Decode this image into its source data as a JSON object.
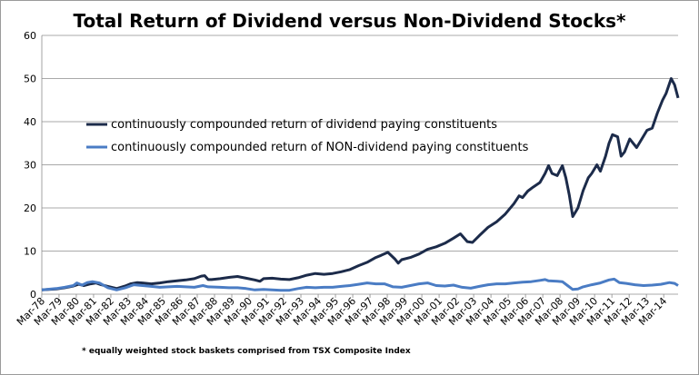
{
  "chart_data": {
    "type": "line",
    "title": "Total Return of Dividend versus Non-Dividend Stocks*",
    "footnote": "* equally weighted stock baskets comprised from TSX Composite Index",
    "ylim": [
      0,
      60
    ],
    "yticks": [
      0,
      10,
      20,
      30,
      40,
      50,
      60
    ],
    "grid": "horizontal",
    "legend_position": "upper-left inside plot",
    "categories": [
      "Mar-78",
      "Mar-79",
      "Mar-80",
      "Mar-81",
      "Mar-82",
      "Mar-83",
      "Mar-84",
      "Mar-85",
      "Mar-86",
      "Mar-87",
      "Mar-88",
      "Mar-89",
      "Mar-90",
      "Mar-91",
      "Mar-92",
      "Mar-93",
      "Mar-94",
      "Mar-95",
      "Mar-96",
      "Mar-97",
      "Mar-98",
      "Mar-99",
      "Mar-00",
      "Mar-01",
      "Mar-02",
      "Mar-03",
      "Mar-04",
      "Mar-05",
      "Mar-06",
      "Mar-07",
      "Mar-08",
      "Mar-09",
      "Mar-10",
      "Mar-11",
      "Mar-12",
      "Mar-13",
      "Mar-14"
    ],
    "x_range": [
      1978.17,
      2015.0
    ],
    "series": [
      {
        "name": "continuously compounded return of dividend paying constituents",
        "color": "#1c2b4a",
        "points": [
          [
            1978.17,
            1.0
          ],
          [
            1979.0,
            1.2
          ],
          [
            1979.5,
            1.5
          ],
          [
            1980.0,
            1.9
          ],
          [
            1980.3,
            2.3
          ],
          [
            1980.6,
            2.0
          ],
          [
            1981.0,
            2.4
          ],
          [
            1981.3,
            2.6
          ],
          [
            1981.6,
            2.2
          ],
          [
            1982.0,
            1.8
          ],
          [
            1982.5,
            1.3
          ],
          [
            1983.0,
            1.9
          ],
          [
            1983.3,
            2.4
          ],
          [
            1983.7,
            2.7
          ],
          [
            1984.0,
            2.6
          ],
          [
            1984.5,
            2.4
          ],
          [
            1985.0,
            2.6
          ],
          [
            1985.5,
            2.9
          ],
          [
            1986.0,
            3.1
          ],
          [
            1986.5,
            3.3
          ],
          [
            1987.0,
            3.6
          ],
          [
            1987.4,
            4.2
          ],
          [
            1987.6,
            4.3
          ],
          [
            1987.8,
            3.4
          ],
          [
            1988.0,
            3.4
          ],
          [
            1988.5,
            3.6
          ],
          [
            1989.0,
            3.9
          ],
          [
            1989.5,
            4.1
          ],
          [
            1990.0,
            3.7
          ],
          [
            1990.5,
            3.3
          ],
          [
            1990.8,
            3.0
          ],
          [
            1991.0,
            3.6
          ],
          [
            1991.5,
            3.7
          ],
          [
            1992.0,
            3.5
          ],
          [
            1992.5,
            3.4
          ],
          [
            1993.0,
            3.8
          ],
          [
            1993.5,
            4.4
          ],
          [
            1994.0,
            4.8
          ],
          [
            1994.5,
            4.6
          ],
          [
            1995.0,
            4.8
          ],
          [
            1995.5,
            5.2
          ],
          [
            1996.0,
            5.7
          ],
          [
            1996.5,
            6.6
          ],
          [
            1997.0,
            7.4
          ],
          [
            1997.5,
            8.5
          ],
          [
            1997.8,
            9.0
          ],
          [
            1998.2,
            9.7
          ],
          [
            1998.6,
            8.2
          ],
          [
            1998.8,
            7.2
          ],
          [
            1999.0,
            8.0
          ],
          [
            1999.5,
            8.5
          ],
          [
            2000.0,
            9.3
          ],
          [
            2000.5,
            10.4
          ],
          [
            2001.0,
            11.0
          ],
          [
            2001.5,
            11.8
          ],
          [
            2002.0,
            13.0
          ],
          [
            2002.4,
            14.0
          ],
          [
            2002.8,
            12.2
          ],
          [
            2003.1,
            12.0
          ],
          [
            2003.5,
            13.6
          ],
          [
            2004.0,
            15.5
          ],
          [
            2004.5,
            16.8
          ],
          [
            2005.0,
            18.6
          ],
          [
            2005.5,
            21.0
          ],
          [
            2005.8,
            22.8
          ],
          [
            2006.0,
            22.4
          ],
          [
            2006.3,
            23.9
          ],
          [
            2006.6,
            24.8
          ],
          [
            2007.0,
            25.9
          ],
          [
            2007.3,
            28.0
          ],
          [
            2007.5,
            29.8
          ],
          [
            2007.7,
            28.0
          ],
          [
            2008.0,
            27.5
          ],
          [
            2008.3,
            29.8
          ],
          [
            2008.5,
            27.0
          ],
          [
            2008.7,
            23.0
          ],
          [
            2008.9,
            18.0
          ],
          [
            2009.2,
            20.0
          ],
          [
            2009.5,
            24.0
          ],
          [
            2009.8,
            27.0
          ],
          [
            2010.0,
            28.0
          ],
          [
            2010.3,
            30.0
          ],
          [
            2010.5,
            28.5
          ],
          [
            2010.8,
            32.0
          ],
          [
            2011.0,
            35.0
          ],
          [
            2011.2,
            37.0
          ],
          [
            2011.5,
            36.5
          ],
          [
            2011.7,
            32.0
          ],
          [
            2011.9,
            33.0
          ],
          [
            2012.2,
            36.0
          ],
          [
            2012.4,
            35.0
          ],
          [
            2012.6,
            34.0
          ],
          [
            2012.9,
            36.0
          ],
          [
            2013.2,
            38.0
          ],
          [
            2013.5,
            38.5
          ],
          [
            2013.8,
            42.0
          ],
          [
            2014.1,
            45.0
          ],
          [
            2014.3,
            46.5
          ],
          [
            2014.6,
            50.0
          ],
          [
            2014.8,
            48.5
          ],
          [
            2015.0,
            45.5
          ]
        ]
      },
      {
        "name": "continuously compounded return of NON-dividend paying constituents",
        "color": "#4a7cc4",
        "points": [
          [
            1978.17,
            1.0
          ],
          [
            1979.0,
            1.3
          ],
          [
            1979.5,
            1.6
          ],
          [
            1980.0,
            2.0
          ],
          [
            1980.2,
            2.6
          ],
          [
            1980.5,
            2.1
          ],
          [
            1980.8,
            2.7
          ],
          [
            1981.1,
            2.9
          ],
          [
            1981.5,
            2.6
          ],
          [
            1982.0,
            1.5
          ],
          [
            1982.5,
            1.0
          ],
          [
            1983.0,
            1.5
          ],
          [
            1983.5,
            2.2
          ],
          [
            1984.0,
            2.0
          ],
          [
            1984.5,
            1.8
          ],
          [
            1985.0,
            1.6
          ],
          [
            1985.5,
            1.7
          ],
          [
            1986.0,
            1.8
          ],
          [
            1986.5,
            1.7
          ],
          [
            1987.0,
            1.6
          ],
          [
            1987.5,
            2.0
          ],
          [
            1987.8,
            1.7
          ],
          [
            1988.5,
            1.6
          ],
          [
            1989.0,
            1.5
          ],
          [
            1989.5,
            1.5
          ],
          [
            1990.0,
            1.3
          ],
          [
            1990.5,
            1.0
          ],
          [
            1991.0,
            1.1
          ],
          [
            1992.0,
            0.9
          ],
          [
            1992.5,
            0.9
          ],
          [
            1993.0,
            1.3
          ],
          [
            1993.5,
            1.6
          ],
          [
            1994.0,
            1.5
          ],
          [
            1994.5,
            1.6
          ],
          [
            1995.0,
            1.6
          ],
          [
            1995.5,
            1.8
          ],
          [
            1996.0,
            2.0
          ],
          [
            1996.5,
            2.3
          ],
          [
            1997.0,
            2.6
          ],
          [
            1997.5,
            2.4
          ],
          [
            1998.0,
            2.4
          ],
          [
            1998.5,
            1.7
          ],
          [
            1999.0,
            1.6
          ],
          [
            1999.5,
            2.0
          ],
          [
            2000.0,
            2.4
          ],
          [
            2000.5,
            2.6
          ],
          [
            2001.0,
            2.0
          ],
          [
            2001.5,
            1.9
          ],
          [
            2002.0,
            2.1
          ],
          [
            2002.5,
            1.6
          ],
          [
            2003.0,
            1.4
          ],
          [
            2003.5,
            1.8
          ],
          [
            2004.0,
            2.2
          ],
          [
            2004.5,
            2.4
          ],
          [
            2005.0,
            2.4
          ],
          [
            2005.5,
            2.6
          ],
          [
            2006.0,
            2.8
          ],
          [
            2006.5,
            2.9
          ],
          [
            2007.0,
            3.2
          ],
          [
            2007.3,
            3.4
          ],
          [
            2007.5,
            3.1
          ],
          [
            2008.0,
            3.0
          ],
          [
            2008.3,
            2.9
          ],
          [
            2008.6,
            2.0
          ],
          [
            2008.9,
            1.1
          ],
          [
            2009.2,
            1.2
          ],
          [
            2009.5,
            1.7
          ],
          [
            2010.0,
            2.2
          ],
          [
            2010.5,
            2.6
          ],
          [
            2011.0,
            3.3
          ],
          [
            2011.3,
            3.5
          ],
          [
            2011.6,
            2.7
          ],
          [
            2012.0,
            2.5
          ],
          [
            2012.5,
            2.2
          ],
          [
            2013.0,
            2.0
          ],
          [
            2013.5,
            2.1
          ],
          [
            2014.0,
            2.3
          ],
          [
            2014.5,
            2.7
          ],
          [
            2014.8,
            2.5
          ],
          [
            2015.0,
            2.0
          ]
        ]
      }
    ]
  }
}
